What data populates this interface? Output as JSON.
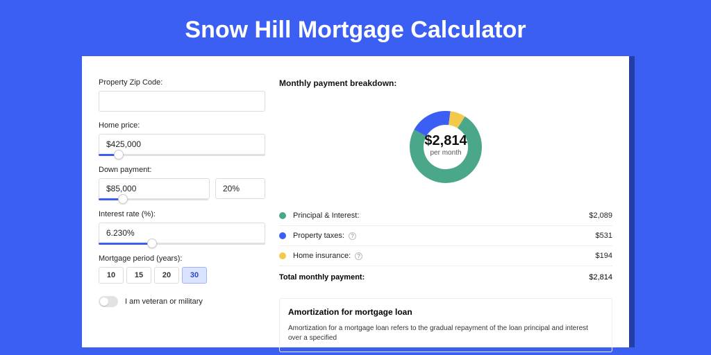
{
  "page": {
    "title": "Snow Hill Mortgage Calculator"
  },
  "colors": {
    "page_bg": "#3b5ff3",
    "card_shadow": "#243ea6",
    "accent": "#3b5ff3",
    "donut_pi": "#4aa789",
    "donut_tax": "#3b5ff3",
    "donut_ins": "#f3c94b"
  },
  "form": {
    "zip": {
      "label": "Property Zip Code:",
      "value": ""
    },
    "home_price": {
      "label": "Home price:",
      "value": "$425,000",
      "slider_pct": 12
    },
    "down_payment": {
      "label": "Down payment:",
      "amount": "$85,000",
      "percent": "20%",
      "slider_pct": 22
    },
    "interest": {
      "label": "Interest rate (%):",
      "value": "6.230%",
      "slider_pct": 32
    },
    "period": {
      "label": "Mortgage period (years):",
      "options": [
        "10",
        "15",
        "20",
        "30"
      ],
      "active_index": 3
    },
    "veteran": {
      "label": "I am veteran or military",
      "checked": false
    }
  },
  "breakdown": {
    "title": "Monthly payment breakdown:",
    "center_amount": "$2,814",
    "center_sub": "per month",
    "items": [
      {
        "label": "Principal & Interest:",
        "value": "$2,089",
        "color": "#4aa789",
        "help": false,
        "slice_pct": 74
      },
      {
        "label": "Property taxes:",
        "value": "$531",
        "color": "#3b5ff3",
        "help": true,
        "slice_pct": 19
      },
      {
        "label": "Home insurance:",
        "value": "$194",
        "color": "#f3c94b",
        "help": true,
        "slice_pct": 7
      }
    ],
    "total_label": "Total monthly payment:",
    "total_value": "$2,814"
  },
  "amortization": {
    "title": "Amortization for mortgage loan",
    "text": "Amortization for a mortgage loan refers to the gradual repayment of the loan principal and interest over a specified"
  },
  "donut": {
    "radius": 52,
    "thickness": 20,
    "rotation_deg": -58
  }
}
